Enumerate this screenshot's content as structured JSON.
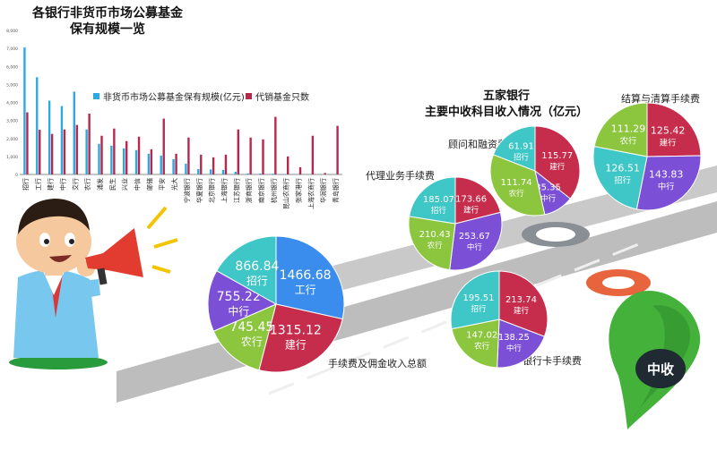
{
  "bar_title_line1": "各银行非货币市场公募基金",
  "bar_title_line2": "保有规模一览",
  "pie_title_line1": "五家银行",
  "pie_title_line2": "主要中收科目收入情况（亿元）",
  "badge_text": "中收",
  "colors": {
    "blue_bar": "#2fa8e0",
    "red_bar": "#b5294e",
    "gongshang": "#3b8ded",
    "jianshe": "#c62d4d",
    "nongye": "#8cc63f",
    "zhongguo": "#7b4fd6",
    "zhaoshang": "#3fc6c6",
    "road": "#c8c8c8",
    "badge_green": "#3aaa35"
  },
  "chart_data": [
    {
      "type": "bar",
      "title": "各银行非货币市场公募基金 保有规模一览",
      "categories": [
        "招行",
        "工行",
        "建行",
        "中行",
        "交行",
        "农行",
        "浦发",
        "民生",
        "兴业",
        "中信",
        "邮储",
        "平安",
        "光大",
        "宁波银行",
        "华夏银行",
        "北京银行",
        "上海银行",
        "江苏银行",
        "浙商银行",
        "南京银行",
        "杭州银行",
        "昆山农商行",
        "张家港行",
        "上海农商行",
        "华润银行",
        "青岛银行"
      ],
      "y_ticks": [
        "0",
        "1,000",
        "2,000",
        "3,000",
        "4,000",
        "5,000",
        "6,000",
        "7,000",
        "8,000"
      ],
      "ylim": [
        0,
        8000
      ],
      "y2lim": [
        0,
        800
      ],
      "series": [
        {
          "name": "非货币市场公募基金保有规模(亿元)",
          "axis": "left",
          "values": [
            7050,
            5400,
            4100,
            3800,
            4600,
            2500,
            1700,
            1600,
            1450,
            1350,
            1150,
            1050,
            850,
            600,
            300,
            280,
            250,
            150,
            60,
            50,
            40,
            25,
            20,
            15,
            5,
            2
          ]
        },
        {
          "name": "代销基金只数",
          "axis": "right",
          "values": [
            345,
            248,
            225,
            250,
            275,
            338,
            215,
            255,
            185,
            210,
            140,
            310,
            115,
            205,
            110,
            95,
            110,
            250,
            205,
            195,
            320,
            100,
            40,
            215,
            8,
            270
          ]
        }
      ]
    },
    {
      "type": "pie",
      "title": "手续费及佣金收入总额",
      "labels": [
        "工行",
        "建行",
        "农行",
        "中行",
        "招行"
      ],
      "values": [
        1466.68,
        1315.12,
        745.45,
        755.22,
        866.84
      ]
    },
    {
      "type": "pie",
      "title": "代理业务手续费",
      "labels": [
        "建行",
        "中行",
        "农行",
        "招行"
      ],
      "values": [
        173.66,
        253.67,
        210.43,
        185.07
      ]
    },
    {
      "type": "pie",
      "title": "顾问和融资费",
      "labels": [
        "建行",
        "中行",
        "农行",
        "招行"
      ],
      "values": [
        115.77,
        35.35,
        111.74,
        61.91
      ]
    },
    {
      "type": "pie",
      "title": "结算与清算手续费",
      "labels": [
        "建行",
        "中行",
        "招行",
        "农行"
      ],
      "values": [
        125.42,
        143.83,
        126.51,
        111.29
      ]
    },
    {
      "type": "pie",
      "title": "银行卡手续费",
      "labels": [
        "建行",
        "中行",
        "农行",
        "招行"
      ],
      "values": [
        213.74,
        138.25,
        147.02,
        195.51
      ]
    }
  ]
}
